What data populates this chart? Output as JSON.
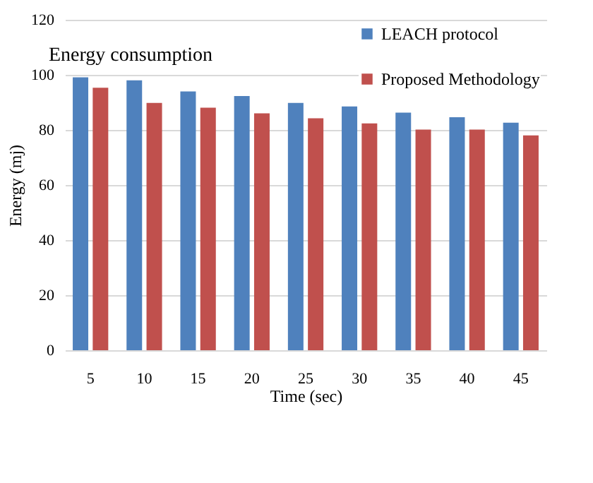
{
  "chart_data": {
    "type": "bar",
    "title": "Energy consumption",
    "xlabel": "Time (sec)",
    "ylabel": "Energy (mj)",
    "categories": [
      "5",
      "10",
      "15",
      "20",
      "25",
      "30",
      "35",
      "40",
      "45"
    ],
    "series": [
      {
        "name": "LEACH protocol",
        "color": "#4f81bd",
        "values": [
          99.1,
          98,
          94,
          92.3,
          89.8,
          88.5,
          86.3,
          84.6,
          82.6
        ]
      },
      {
        "name": "Proposed Methodology",
        "color": "#c0504d",
        "values": [
          95.3,
          89.8,
          88.1,
          86,
          84.2,
          82.4,
          80.1,
          80.1,
          78
        ]
      }
    ],
    "ylim": [
      0,
      120
    ],
    "yticks": [
      0,
      20,
      40,
      60,
      80,
      100,
      120
    ],
    "grid": "y",
    "legend": "top right"
  }
}
